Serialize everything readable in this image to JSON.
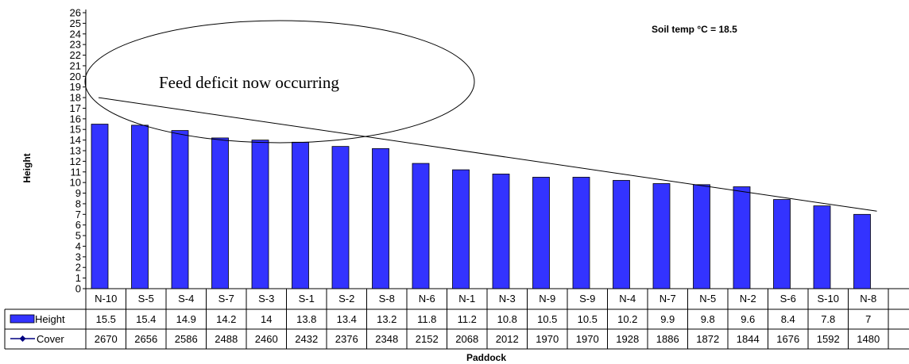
{
  "chart_data": {
    "type": "bar",
    "title": "",
    "xlabel": "Paddock",
    "ylabel": "Height",
    "ylim": [
      0,
      26
    ],
    "yticks": [
      0,
      1,
      2,
      3,
      4,
      5,
      6,
      7,
      8,
      9,
      10,
      11,
      12,
      13,
      14,
      15,
      16,
      17,
      18,
      19,
      20,
      21,
      22,
      23,
      24,
      25,
      26
    ],
    "categories": [
      "N-10",
      "S-5",
      "S-4",
      "S-7",
      "S-3",
      "S-1",
      "S-2",
      "S-8",
      "N-6",
      "N-1",
      "N-3",
      "N-9",
      "S-9",
      "N-4",
      "N-7",
      "N-5",
      "N-2",
      "S-6",
      "S-10",
      "N-8"
    ],
    "series": [
      {
        "name": "Height",
        "type": "bar",
        "color": "#3333ff",
        "values": [
          15.5,
          15.4,
          14.9,
          14.2,
          14,
          13.8,
          13.4,
          13.2,
          11.8,
          11.2,
          10.8,
          10.5,
          10.5,
          10.2,
          9.9,
          9.8,
          9.6,
          8.4,
          7.8,
          7
        ]
      },
      {
        "name": "Cover",
        "type": "line",
        "color": "#000080",
        "values": [
          2670,
          2656,
          2586,
          2488,
          2460,
          2432,
          2376,
          2348,
          2152,
          2068,
          2012,
          1970,
          1970,
          1928,
          1886,
          1872,
          1844,
          1676,
          1592,
          1480
        ]
      }
    ],
    "trend_line": {
      "from": 18,
      "to": 7.3
    },
    "annotation": "Feed deficit now occurring",
    "note": "Soil temp °C = 18.5",
    "grid": false,
    "legend": "left of data table"
  }
}
